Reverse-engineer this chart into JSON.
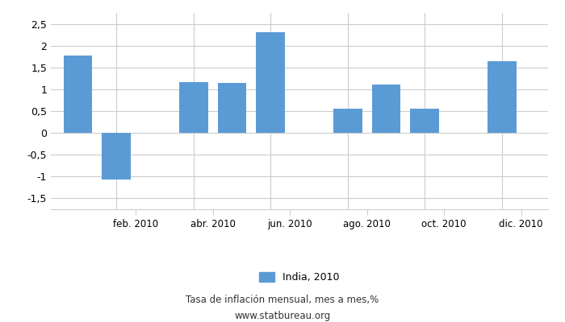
{
  "months_count": 12,
  "values": [
    1.77,
    -1.07,
    0.0,
    1.17,
    1.15,
    2.3,
    0.0,
    0.55,
    1.1,
    0.55,
    0.0,
    1.65
  ],
  "bar_color": "#5B9BD5",
  "ylim": [
    -1.75,
    2.75
  ],
  "yticks": [
    -1.5,
    -1.0,
    -0.5,
    0.0,
    0.5,
    1.0,
    1.5,
    2.0,
    2.5
  ],
  "xtick_positions": [
    1.5,
    3.5,
    5.5,
    7.5,
    9.5,
    11.5
  ],
  "xtick_labels": [
    "feb. 2010",
    "abr. 2010",
    "jun. 2010",
    "ago. 2010",
    "oct. 2010",
    "dic. 2010"
  ],
  "legend_label": "India, 2010",
  "footer_line1": "Tasa de inflación mensual, mes a mes,%",
  "footer_line2": "www.statbureau.org",
  "background_color": "#FFFFFF",
  "grid_color": "#CCCCCC"
}
